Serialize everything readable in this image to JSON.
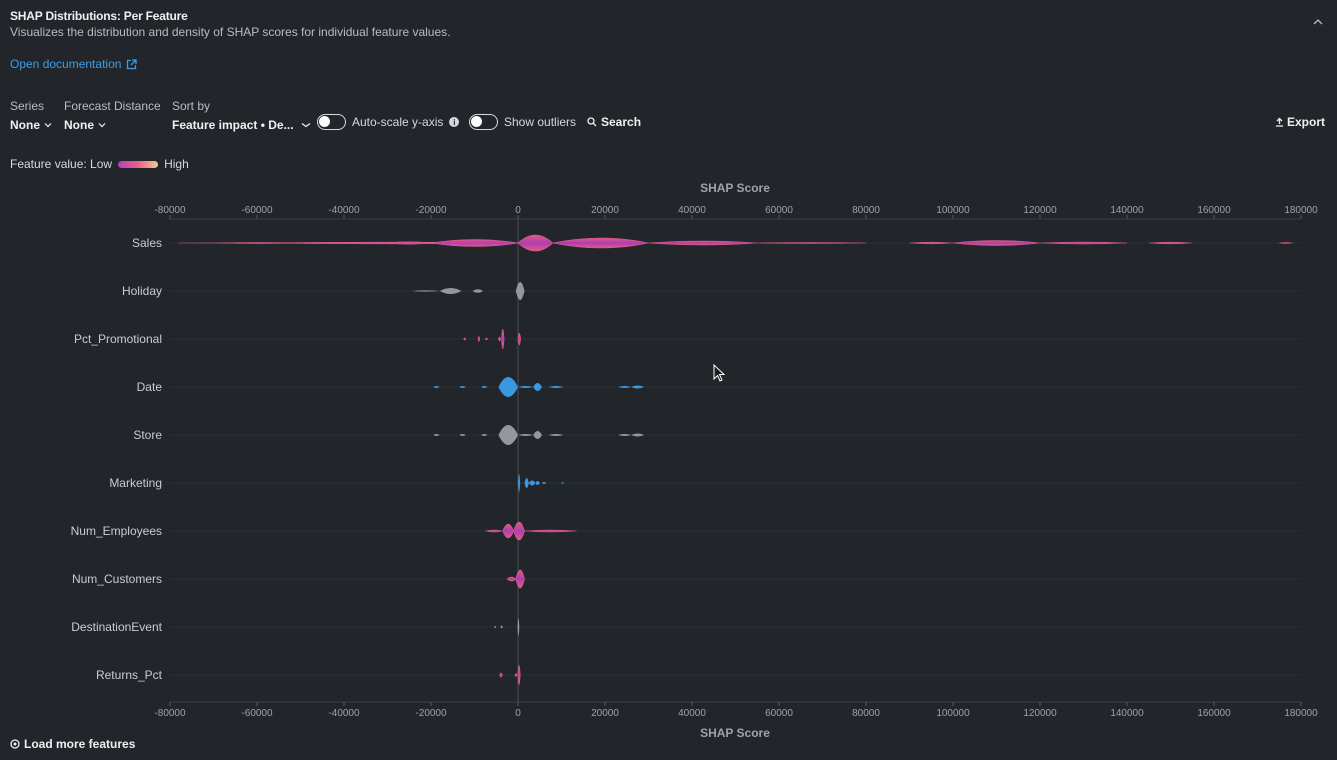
{
  "header": {
    "title": "SHAP Distributions: Per Feature",
    "subtitle": "Visualizes the distribution and density of SHAP scores for individual feature values.",
    "doc_link": "Open documentation"
  },
  "controls": {
    "series": {
      "label": "Series",
      "value": "None"
    },
    "forecast_distance": {
      "label": "Forecast Distance",
      "value": "None"
    },
    "sort_by": {
      "label": "Sort by",
      "value": "Feature impact • De..."
    },
    "autoscale": {
      "label": "Auto-scale y-axis",
      "on": false
    },
    "outliers": {
      "label": "Show outliers",
      "on": false
    },
    "search_label": "Search",
    "export_label": "Export"
  },
  "legend": {
    "low": "Feature value: Low",
    "high": "High"
  },
  "footer": {
    "load_more": "Load more features"
  },
  "chart_data": {
    "type": "violin",
    "title": "SHAP Score",
    "xlabel": "SHAP Score",
    "xlim": [
      -80000,
      180000
    ],
    "xticks": [
      -80000,
      -60000,
      -40000,
      -20000,
      0,
      20000,
      40000,
      60000,
      80000,
      100000,
      120000,
      140000,
      160000,
      180000
    ],
    "colors": {
      "low": "#b83db8",
      "mid": "#e8608a",
      "high": "#f5c890",
      "categorical": "#3d9ee8",
      "missing": "#9a9ea3"
    },
    "features": [
      {
        "name": "Sales",
        "color": "gradient",
        "segments": [
          [
            -78000,
            1,
            0.3
          ],
          [
            -68000,
            -50000,
            0.5
          ],
          [
            -60000,
            2,
            0.8
          ],
          [
            -30000,
            -20000,
            1.2
          ],
          [
            -20000,
            0,
            3.5
          ],
          [
            0,
            8000,
            8
          ],
          [
            8000,
            30000,
            5
          ],
          [
            30000,
            55000,
            2
          ],
          [
            55000,
            80000,
            0.5
          ],
          [
            90000,
            100000,
            0.8
          ],
          [
            100000,
            120000,
            2.5
          ],
          [
            120000,
            140000,
            1
          ],
          [
            145000,
            155000,
            0.8
          ],
          [
            175000,
            178000,
            0.4
          ]
        ]
      },
      {
        "name": "Holiday",
        "color": "missing",
        "segments": [
          [
            -24500,
            -18000,
            0.6
          ],
          [
            -18000,
            -13000,
            3
          ],
          [
            -10500,
            -8000,
            1.8
          ],
          [
            -500,
            1500,
            9
          ]
        ]
      },
      {
        "name": "Pct_Promotional",
        "color": "gradient",
        "segments": [
          [
            -12500,
            -12000,
            1
          ],
          [
            -9200,
            -8800,
            2.5
          ],
          [
            -7500,
            -7000,
            1
          ],
          [
            -4500,
            -4000,
            2
          ],
          [
            -3800,
            -3200,
            10
          ],
          [
            0,
            600,
            6
          ]
        ]
      },
      {
        "name": "Date",
        "color": "categorical",
        "segments": [
          [
            -19500,
            -18000,
            1
          ],
          [
            -13500,
            -12000,
            1
          ],
          [
            -8500,
            -7000,
            1
          ],
          [
            -4500,
            0,
            10
          ],
          [
            0,
            3500,
            1
          ],
          [
            3500,
            5500,
            4
          ],
          [
            7000,
            10500,
            1
          ],
          [
            23000,
            26000,
            1
          ],
          [
            26000,
            29000,
            1.5
          ]
        ]
      },
      {
        "name": "Store",
        "color": "missing",
        "segments": [
          [
            -19500,
            -18000,
            1
          ],
          [
            -13500,
            -12000,
            1
          ],
          [
            -8500,
            -7000,
            1
          ],
          [
            -4500,
            0,
            10
          ],
          [
            0,
            3500,
            1
          ],
          [
            3500,
            5500,
            4
          ],
          [
            7000,
            10500,
            1
          ],
          [
            23000,
            26000,
            1
          ],
          [
            26000,
            29000,
            1.5
          ]
        ]
      },
      {
        "name": "Marketing",
        "color": "categorical",
        "segments": [
          [
            0,
            500,
            9
          ],
          [
            1500,
            2500,
            5
          ],
          [
            2500,
            4000,
            2.5
          ],
          [
            4000,
            5000,
            2
          ],
          [
            5500,
            6500,
            1
          ],
          [
            10000,
            10500,
            1
          ]
        ]
      },
      {
        "name": "Num_Employees",
        "color": "gradient",
        "segments": [
          [
            -7500,
            -3500,
            1
          ],
          [
            -3500,
            -1000,
            7
          ],
          [
            -1000,
            1500,
            9
          ],
          [
            1500,
            13500,
            1
          ]
        ]
      },
      {
        "name": "Num_Customers",
        "color": "gradient",
        "segments": [
          [
            -2500,
            -500,
            2
          ],
          [
            -500,
            1500,
            9
          ]
        ]
      },
      {
        "name": "DestinationEvent",
        "color": "missing",
        "segments": [
          [
            -5500,
            -5000,
            1
          ],
          [
            -4000,
            -3500,
            1.5
          ],
          [
            -100,
            300,
            9
          ]
        ]
      },
      {
        "name": "Returns_Pct",
        "color": "gradient",
        "segments": [
          [
            -4200,
            -3600,
            2
          ],
          [
            -700,
            -200,
            1.5
          ],
          [
            0,
            500,
            10
          ]
        ]
      }
    ]
  }
}
